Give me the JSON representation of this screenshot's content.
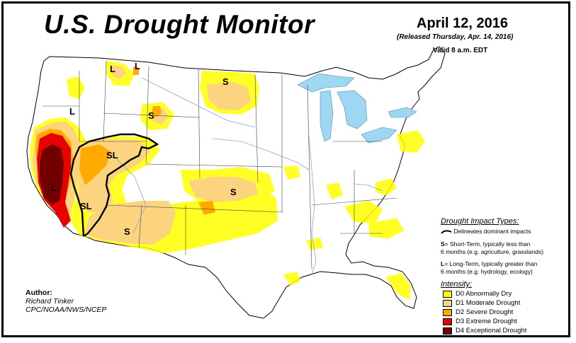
{
  "header": {
    "title": "U.S. Drought Monitor",
    "date": "April 12, 2016",
    "released": "(Released Thursday, Apr. 14, 2016)",
    "valid": "Valid 8 a.m. EDT"
  },
  "impact_legend": {
    "title": "Drought Impact Types:",
    "line_desc": "Delineates dominant impacts",
    "short_key": "S",
    "short_desc": "= Short-Term, typically less than",
    "short_desc2": "6 months (e.g. agriculture, grasslands)",
    "long_key": "L",
    "long_desc": "= Long-Term, typically greater than",
    "long_desc2": "6 months (e.g. hydrology, ecology)"
  },
  "intensity_legend": {
    "title": "Intensity:",
    "items": [
      {
        "label": "D0 Abnormally Dry",
        "color": "#ffff00"
      },
      {
        "label": "D1 Moderate Drought",
        "color": "#fcd37f"
      },
      {
        "label": "D2 Severe Drought",
        "color": "#ffaa00"
      },
      {
        "label": "D3 Extreme Drought",
        "color": "#e60000"
      },
      {
        "label": "D4 Exceptional Drought",
        "color": "#730000"
      }
    ]
  },
  "author": {
    "title": "Author:",
    "name": "Richard Tinker",
    "org": "CPC/NOAA/NWS/NCEP"
  },
  "map_labels": {
    "mt_l1": "L",
    "mt_l2": "L",
    "or_l": "L",
    "nd_s": "S",
    "wy_s": "S",
    "nv_sl": "SL",
    "ca_l": "L",
    "az_sl": "SL",
    "ks_s": "S",
    "az_s": "S"
  },
  "colors": {
    "water": "#9dd7f2",
    "border": "#000000",
    "river": "#7fa7d6"
  }
}
